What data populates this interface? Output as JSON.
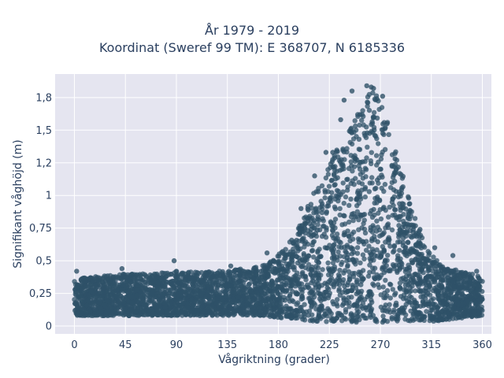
{
  "chart_data": {
    "type": "scatter",
    "title_line1": "År 1979 - 2019",
    "title_line2": "Koordinat (Sweref 99 TM): E 368707, N 6185336",
    "xlabel": "Vågriktning (grader)",
    "ylabel": "Signifikant våghöjd (m)",
    "xlim": [
      -17,
      368
    ],
    "ylim": [
      -0.06,
      1.93
    ],
    "x_ticks": [
      0,
      45,
      90,
      135,
      180,
      225,
      270,
      315,
      360
    ],
    "x_tick_labels": [
      "0",
      "45",
      "90",
      "135",
      "180",
      "225",
      "270",
      "315",
      "360"
    ],
    "y_ticks": [
      0,
      0.25,
      0.5,
      0.75,
      1,
      1.25,
      1.5,
      1.75
    ],
    "y_tick_labels": [
      "0",
      "0,25",
      "0,5",
      "0,75",
      "1",
      "1,2",
      "1,5",
      "1,8"
    ],
    "grid": true,
    "plot_background": "#e5e5f0",
    "grid_color": "#ffffff",
    "marker_color": "#2f5168",
    "envelope": {
      "x": [
        0,
        20,
        45,
        70,
        90,
        110,
        135,
        150,
        165,
        175,
        185,
        195,
        205,
        215,
        225,
        235,
        245,
        255,
        260,
        265,
        270,
        275,
        280,
        290,
        300,
        310,
        320,
        330,
        340,
        350,
        360
      ],
      "y_min": [
        0.08,
        0.08,
        0.08,
        0.08,
        0.08,
        0.08,
        0.08,
        0.08,
        0.08,
        0.07,
        0.06,
        0.05,
        0.04,
        0.03,
        0.03,
        0.03,
        0.03,
        0.03,
        0.03,
        0.03,
        0.03,
        0.03,
        0.03,
        0.03,
        0.03,
        0.03,
        0.04,
        0.05,
        0.06,
        0.07,
        0.08
      ],
      "y_max": [
        0.36,
        0.38,
        0.4,
        0.4,
        0.42,
        0.42,
        0.43,
        0.44,
        0.46,
        0.5,
        0.6,
        0.72,
        0.9,
        1.1,
        1.25,
        1.4,
        1.55,
        1.72,
        1.78,
        1.8,
        1.75,
        1.62,
        1.45,
        1.15,
        0.85,
        0.6,
        0.52,
        0.45,
        0.42,
        0.4,
        0.38
      ]
    },
    "outliers": [
      {
        "x": 2,
        "y": 0.42
      },
      {
        "x": 42,
        "y": 0.44
      },
      {
        "x": 88,
        "y": 0.5
      },
      {
        "x": 138,
        "y": 0.46
      },
      {
        "x": 170,
        "y": 0.56
      },
      {
        "x": 200,
        "y": 0.9
      },
      {
        "x": 212,
        "y": 1.15
      },
      {
        "x": 222,
        "y": 1.33
      },
      {
        "x": 228,
        "y": 1.33
      },
      {
        "x": 235,
        "y": 1.58
      },
      {
        "x": 238,
        "y": 1.73
      },
      {
        "x": 245,
        "y": 1.8
      },
      {
        "x": 252,
        "y": 1.62
      },
      {
        "x": 258,
        "y": 1.84
      },
      {
        "x": 262,
        "y": 1.83
      },
      {
        "x": 264,
        "y": 1.82
      },
      {
        "x": 267,
        "y": 1.74
      },
      {
        "x": 272,
        "y": 1.76
      },
      {
        "x": 276,
        "y": 1.55
      },
      {
        "x": 283,
        "y": 1.28
      },
      {
        "x": 295,
        "y": 0.98
      },
      {
        "x": 305,
        "y": 0.74
      },
      {
        "x": 318,
        "y": 0.6
      },
      {
        "x": 334,
        "y": 0.54
      },
      {
        "x": 355,
        "y": 0.42
      }
    ]
  }
}
